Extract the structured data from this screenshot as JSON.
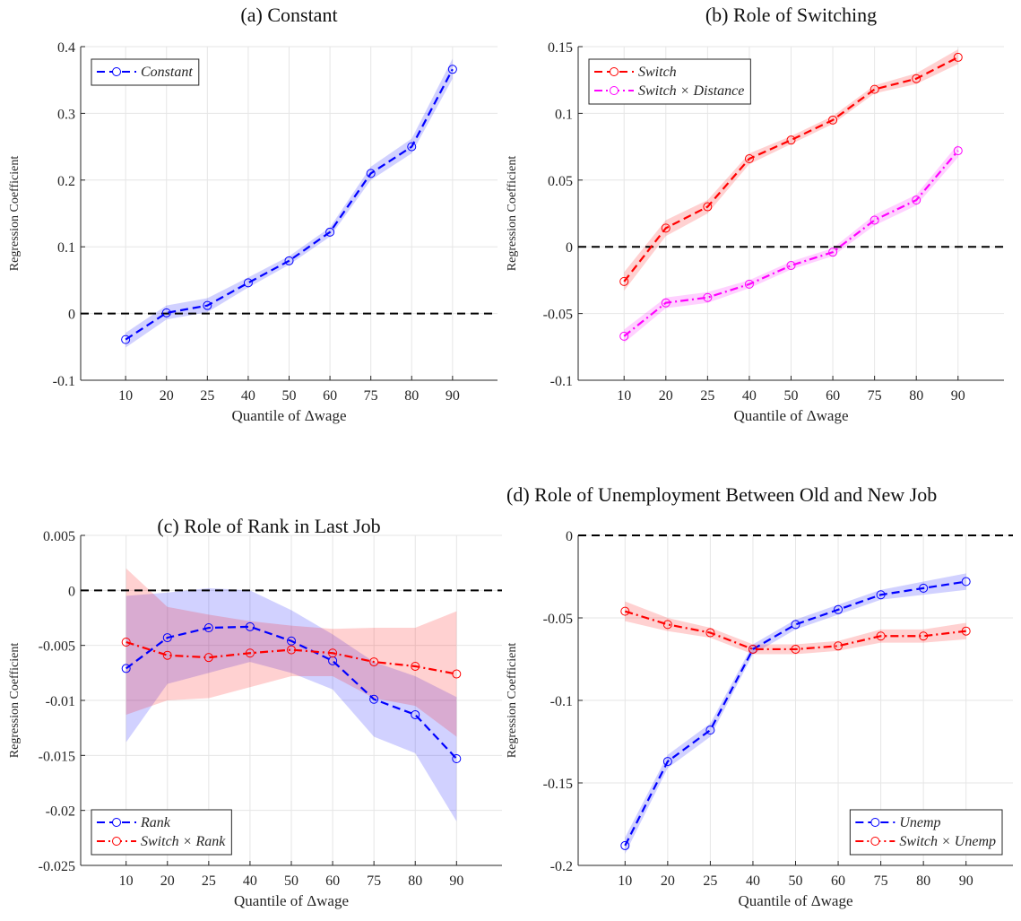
{
  "chart_data": [
    {
      "type": "line",
      "title": "(a) Constant",
      "xlabel": "Quantile of Δwage",
      "ylabel": "Regression Coefficient",
      "categories": [
        "10",
        "20",
        "25",
        "40",
        "50",
        "60",
        "75",
        "80",
        "90"
      ],
      "ylim": [
        -0.1,
        0.4
      ],
      "yticks": [
        -0.1,
        0,
        0.1,
        0.2,
        0.3,
        0.4
      ],
      "grid": true,
      "reference_line": 0,
      "legend": "upper left",
      "series": [
        {
          "name": "Constant",
          "color": "#0000ff",
          "linestyle": "--",
          "values": [
            -0.039,
            0.001,
            0.012,
            0.046,
            0.079,
            0.122,
            0.21,
            0.25,
            0.366
          ],
          "lower": [
            -0.051,
            -0.009,
            0.002,
            0.039,
            0.073,
            0.115,
            0.2,
            0.24,
            0.352
          ],
          "upper": [
            -0.029,
            0.012,
            0.023,
            0.054,
            0.086,
            0.129,
            0.22,
            0.262,
            0.382
          ]
        }
      ]
    },
    {
      "type": "line",
      "title": "(b) Role of Switching",
      "xlabel": "Quantile of Δwage",
      "ylabel": "Regression Coefficient",
      "categories": [
        "10",
        "20",
        "25",
        "40",
        "50",
        "60",
        "75",
        "80",
        "90"
      ],
      "ylim": [
        -0.1,
        0.15
      ],
      "yticks": [
        -0.1,
        -0.05,
        0,
        0.05,
        0.1,
        0.15
      ],
      "grid": true,
      "reference_line": 0,
      "legend": "upper left",
      "series": [
        {
          "name": "Switch",
          "color": "#ff0000",
          "linestyle": "--",
          "values": [
            -0.026,
            0.014,
            0.03,
            0.066,
            0.08,
            0.095,
            0.118,
            0.126,
            0.142
          ],
          "lower": [
            -0.033,
            0.008,
            0.025,
            0.062,
            0.077,
            0.092,
            0.115,
            0.122,
            0.137
          ],
          "upper": [
            -0.019,
            0.02,
            0.035,
            0.07,
            0.083,
            0.098,
            0.121,
            0.13,
            0.148
          ]
        },
        {
          "name": "Switch × Distance",
          "color": "#ff00ff",
          "linestyle": "-.",
          "values": [
            -0.067,
            -0.042,
            -0.038,
            -0.028,
            -0.014,
            -0.004,
            0.02,
            0.035,
            0.072
          ],
          "lower": [
            -0.072,
            -0.046,
            -0.042,
            -0.031,
            -0.017,
            -0.007,
            0.016,
            0.031,
            0.067
          ],
          "upper": [
            -0.062,
            -0.038,
            -0.034,
            -0.025,
            -0.011,
            -0.001,
            0.024,
            0.039,
            0.077
          ]
        }
      ]
    },
    {
      "type": "line",
      "title": "(c) Role of Rank in Last Job",
      "xlabel": "Quantile of Δwage",
      "ylabel": "Regression Coefficient",
      "categories": [
        "10",
        "20",
        "25",
        "40",
        "50",
        "60",
        "75",
        "80",
        "90"
      ],
      "ylim": [
        -0.025,
        0.005
      ],
      "yticks": [
        -0.025,
        -0.02,
        -0.015,
        -0.01,
        -0.005,
        0,
        0.005
      ],
      "grid": true,
      "reference_line": 0,
      "legend": "lower left",
      "series": [
        {
          "name": "Rank",
          "color": "#0000ff",
          "linestyle": "--",
          "values": [
            -0.0071,
            -0.0043,
            -0.0034,
            -0.0033,
            -0.0046,
            -0.0064,
            -0.0099,
            -0.0113,
            -0.0153
          ],
          "lower": [
            -0.0138,
            -0.0085,
            -0.0075,
            -0.0065,
            -0.0075,
            -0.009,
            -0.0133,
            -0.0148,
            -0.021
          ],
          "upper": [
            -0.0005,
            -0.0002,
            0.0002,
            0,
            -0.0018,
            -0.004,
            -0.0065,
            -0.0078,
            -0.0097
          ]
        },
        {
          "name": "Switch × Rank",
          "color": "#ff0000",
          "linestyle": "-.",
          "values": [
            -0.0047,
            -0.0059,
            -0.0061,
            -0.0057,
            -0.0054,
            -0.0057,
            -0.0065,
            -0.0069,
            -0.0076
          ],
          "lower": [
            -0.0113,
            -0.01,
            -0.0098,
            -0.0088,
            -0.0078,
            -0.0078,
            -0.0098,
            -0.0105,
            -0.0133
          ],
          "upper": [
            0.002,
            -0.0015,
            -0.0022,
            -0.0028,
            -0.0032,
            -0.0035,
            -0.0034,
            -0.0034,
            -0.0019
          ]
        }
      ]
    },
    {
      "type": "line",
      "title": "(d) Role of Unemployment Between Old and New Job",
      "xlabel": "Quantile of Δwage",
      "ylabel": "Regression Coefficient",
      "categories": [
        "10",
        "20",
        "25",
        "40",
        "50",
        "60",
        "75",
        "80",
        "90"
      ],
      "ylim": [
        -0.2,
        0
      ],
      "yticks": [
        -0.2,
        -0.15,
        -0.1,
        -0.05,
        0
      ],
      "grid": true,
      "reference_line": 0,
      "legend": "lower right",
      "series": [
        {
          "name": "Unemp",
          "color": "#0000ff",
          "linestyle": "--",
          "values": [
            -0.188,
            -0.137,
            -0.118,
            -0.069,
            -0.054,
            -0.045,
            -0.036,
            -0.032,
            -0.028
          ],
          "lower": [
            -0.193,
            -0.141,
            -0.122,
            -0.072,
            -0.057,
            -0.048,
            -0.039,
            -0.036,
            -0.033
          ],
          "upper": [
            -0.183,
            -0.133,
            -0.114,
            -0.066,
            -0.051,
            -0.042,
            -0.033,
            -0.028,
            -0.023
          ]
        },
        {
          "name": "Switch × Unemp",
          "color": "#ff0000",
          "linestyle": "-.",
          "values": [
            -0.046,
            -0.054,
            -0.059,
            -0.069,
            -0.069,
            -0.067,
            -0.061,
            -0.061,
            -0.058
          ],
          "lower": [
            -0.052,
            -0.058,
            -0.062,
            -0.072,
            -0.072,
            -0.07,
            -0.065,
            -0.065,
            -0.063
          ],
          "upper": [
            -0.04,
            -0.05,
            -0.056,
            -0.066,
            -0.066,
            -0.064,
            -0.057,
            -0.057,
            -0.053
          ]
        }
      ]
    }
  ]
}
